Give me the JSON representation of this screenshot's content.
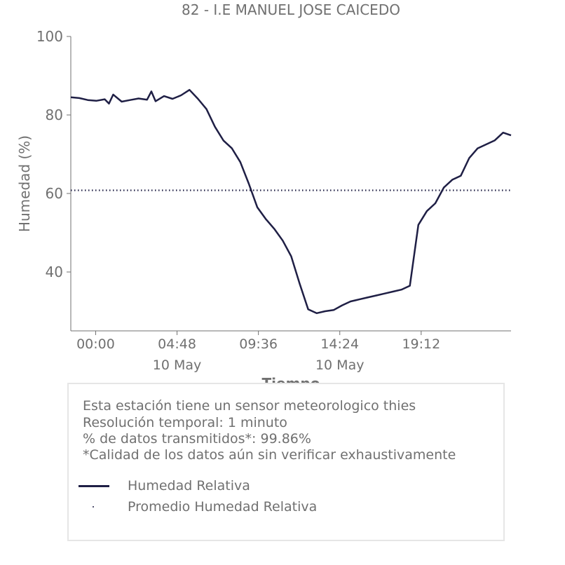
{
  "chart_data": {
    "type": "line",
    "title": "82 - I.E MANUEL JOSE CAICEDO",
    "xlabel": "Tiempo",
    "ylabel": "Humedad (%)",
    "ylim": [
      25,
      100
    ],
    "xlim": [
      "2024-05-09T22:32",
      "2024-05-11T00:30"
    ],
    "y_ticks": [
      40,
      60,
      80,
      100
    ],
    "x_ticks": [
      {
        "time": "2024-05-10T00:00",
        "label": "00:00",
        "sublabel": ""
      },
      {
        "time": "2024-05-10T04:48",
        "label": "04:48",
        "sublabel": "10 May"
      },
      {
        "time": "2024-05-10T09:36",
        "label": "09:36",
        "sublabel": ""
      },
      {
        "time": "2024-05-10T14:24",
        "label": "14:24",
        "sublabel": "10 May"
      },
      {
        "time": "2024-05-10T19:12",
        "label": "19:12",
        "sublabel": ""
      }
    ],
    "grid": false,
    "series": [
      {
        "name": "Humedad Relativa",
        "style": "solid",
        "color": "#1f1f45",
        "x": [
          "2024-05-09T22:32",
          "2024-05-09T23:02",
          "2024-05-09T23:32",
          "2024-05-10T00:02",
          "2024-05-10T00:32",
          "2024-05-10T00:47",
          "2024-05-10T01:02",
          "2024-05-10T01:32",
          "2024-05-10T02:02",
          "2024-05-10T02:32",
          "2024-05-10T03:02",
          "2024-05-10T03:17",
          "2024-05-10T03:32",
          "2024-05-10T04:02",
          "2024-05-10T04:32",
          "2024-05-10T05:02",
          "2024-05-10T05:32",
          "2024-05-10T06:02",
          "2024-05-10T06:32",
          "2024-05-10T07:02",
          "2024-05-10T07:32",
          "2024-05-10T08:02",
          "2024-05-10T08:32",
          "2024-05-10T09:02",
          "2024-05-10T09:32",
          "2024-05-10T10:02",
          "2024-05-10T10:32",
          "2024-05-10T11:02",
          "2024-05-10T11:32",
          "2024-05-10T12:02",
          "2024-05-10T12:32",
          "2024-05-10T13:02",
          "2024-05-10T13:32",
          "2024-05-10T14:02",
          "2024-05-10T14:32",
          "2024-05-10T15:02",
          "2024-05-10T15:32",
          "2024-05-10T16:02",
          "2024-05-10T16:32",
          "2024-05-10T17:02",
          "2024-05-10T17:32",
          "2024-05-10T18:02",
          "2024-05-10T18:32",
          "2024-05-10T19:02",
          "2024-05-10T19:32",
          "2024-05-10T20:02",
          "2024-05-10T20:32",
          "2024-05-10T21:02",
          "2024-05-10T21:32",
          "2024-05-10T22:02",
          "2024-05-10T22:32",
          "2024-05-10T23:02",
          "2024-05-10T23:32",
          "2024-05-11T00:02",
          "2024-05-11T00:30"
        ],
        "values": [
          84.5,
          84.3,
          83.8,
          83.6,
          84.0,
          82.9,
          85.2,
          83.4,
          83.8,
          84.2,
          83.9,
          86.0,
          83.5,
          84.8,
          84.1,
          85.0,
          86.4,
          84.1,
          81.5,
          77.0,
          73.5,
          71.5,
          68.0,
          62.5,
          56.5,
          53.5,
          51.0,
          48.0,
          44.0,
          37.0,
          30.5,
          29.5,
          30.0,
          30.3,
          31.5,
          32.5,
          33.0,
          33.5,
          34.0,
          34.5,
          35.0,
          35.5,
          36.5,
          52.0,
          55.5,
          57.5,
          61.5,
          63.5,
          64.5,
          69.0,
          71.5,
          72.5,
          73.5,
          75.5,
          74.8
        ]
      },
      {
        "name": "Promedio Humedad Relativa",
        "style": "dotted",
        "color": "#1f1f45",
        "values": [
          60.8
        ]
      }
    ],
    "legend_position": "bottom"
  },
  "info": {
    "line1": "Esta estación tiene un sensor meteorologico thies",
    "line2": "Resolución temporal: 1 minuto",
    "line3": "% de datos transmitidos*: 99.86%",
    "line4": "*Calidad de los datos aún sin verificar exhaustivamente"
  },
  "legend": {
    "line_label": "Humedad Relativa",
    "mean_label": "Promedio Humedad Relativa"
  },
  "colors": {
    "series": "#1f1f45",
    "text": "#707070",
    "axis": "#707070",
    "box_border": "#e6e6e6"
  }
}
